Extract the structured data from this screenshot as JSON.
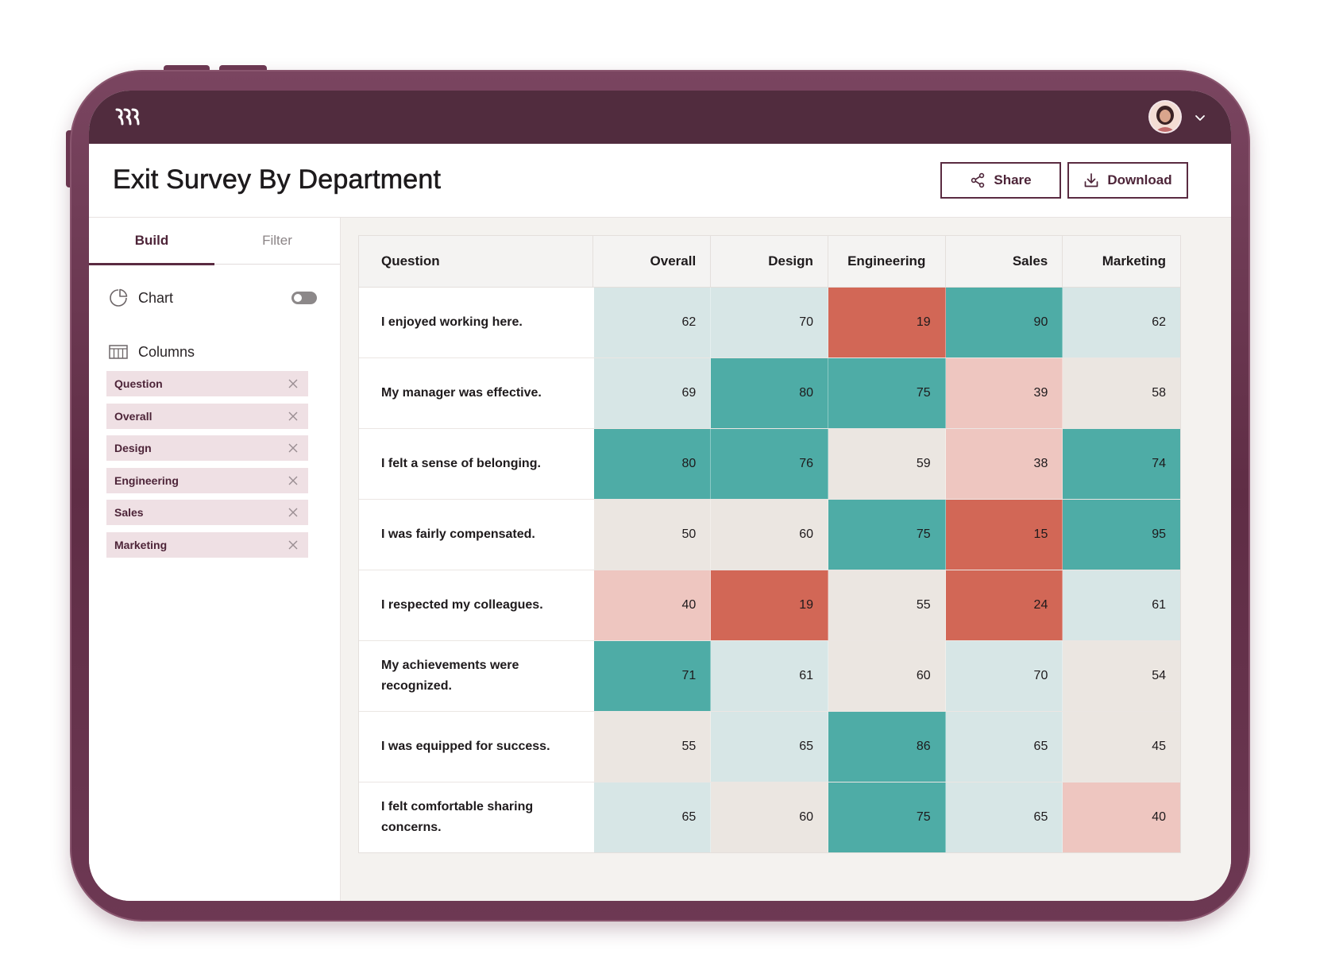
{
  "app": {
    "title": "Exit Survey By Department",
    "logo_icon": "brand-logo-icon",
    "avatar_icon": "user-avatar-icon"
  },
  "actions": {
    "share_label": "Share",
    "download_label": "Download"
  },
  "sidebar": {
    "tabs": [
      {
        "label": "Build",
        "active": true
      },
      {
        "label": "Filter",
        "active": false
      }
    ],
    "chart_label": "Chart",
    "chart_toggle_on": false,
    "columns_label": "Columns",
    "columns": [
      {
        "label": "Question"
      },
      {
        "label": "Overall"
      },
      {
        "label": "Design"
      },
      {
        "label": "Engineering"
      },
      {
        "label": "Sales"
      },
      {
        "label": "Marketing"
      }
    ]
  },
  "colors": {
    "high": "#4eaca6",
    "mid_high": "#d7e6e6",
    "neutral": "#ebe6e1",
    "mid_low": "#eec6c0",
    "low": "#d26756",
    "accent": "#512c3e"
  },
  "table": {
    "headers": [
      "Question",
      "Overall",
      "Design",
      "Engineering",
      "Sales",
      "Marketing"
    ],
    "rows": [
      {
        "question": "I enjoyed working here.",
        "values": [
          62,
          70,
          19,
          90,
          62
        ]
      },
      {
        "question": "My manager was effective.",
        "values": [
          69,
          80,
          75,
          39,
          58
        ]
      },
      {
        "question": "I felt a sense of belonging.",
        "values": [
          80,
          76,
          59,
          38,
          74
        ]
      },
      {
        "question": "I was fairly compensated.",
        "values": [
          50,
          60,
          75,
          15,
          95
        ]
      },
      {
        "question": "I respected my colleagues.",
        "values": [
          40,
          19,
          55,
          24,
          61
        ]
      },
      {
        "question": "My achievements were recognized.",
        "values": [
          71,
          61,
          60,
          70,
          54
        ]
      },
      {
        "question": "I was equipped for success.",
        "values": [
          55,
          65,
          86,
          65,
          45
        ]
      },
      {
        "question": "I felt comfortable sharing concerns.",
        "values": [
          65,
          60,
          75,
          65,
          40
        ]
      }
    ]
  }
}
